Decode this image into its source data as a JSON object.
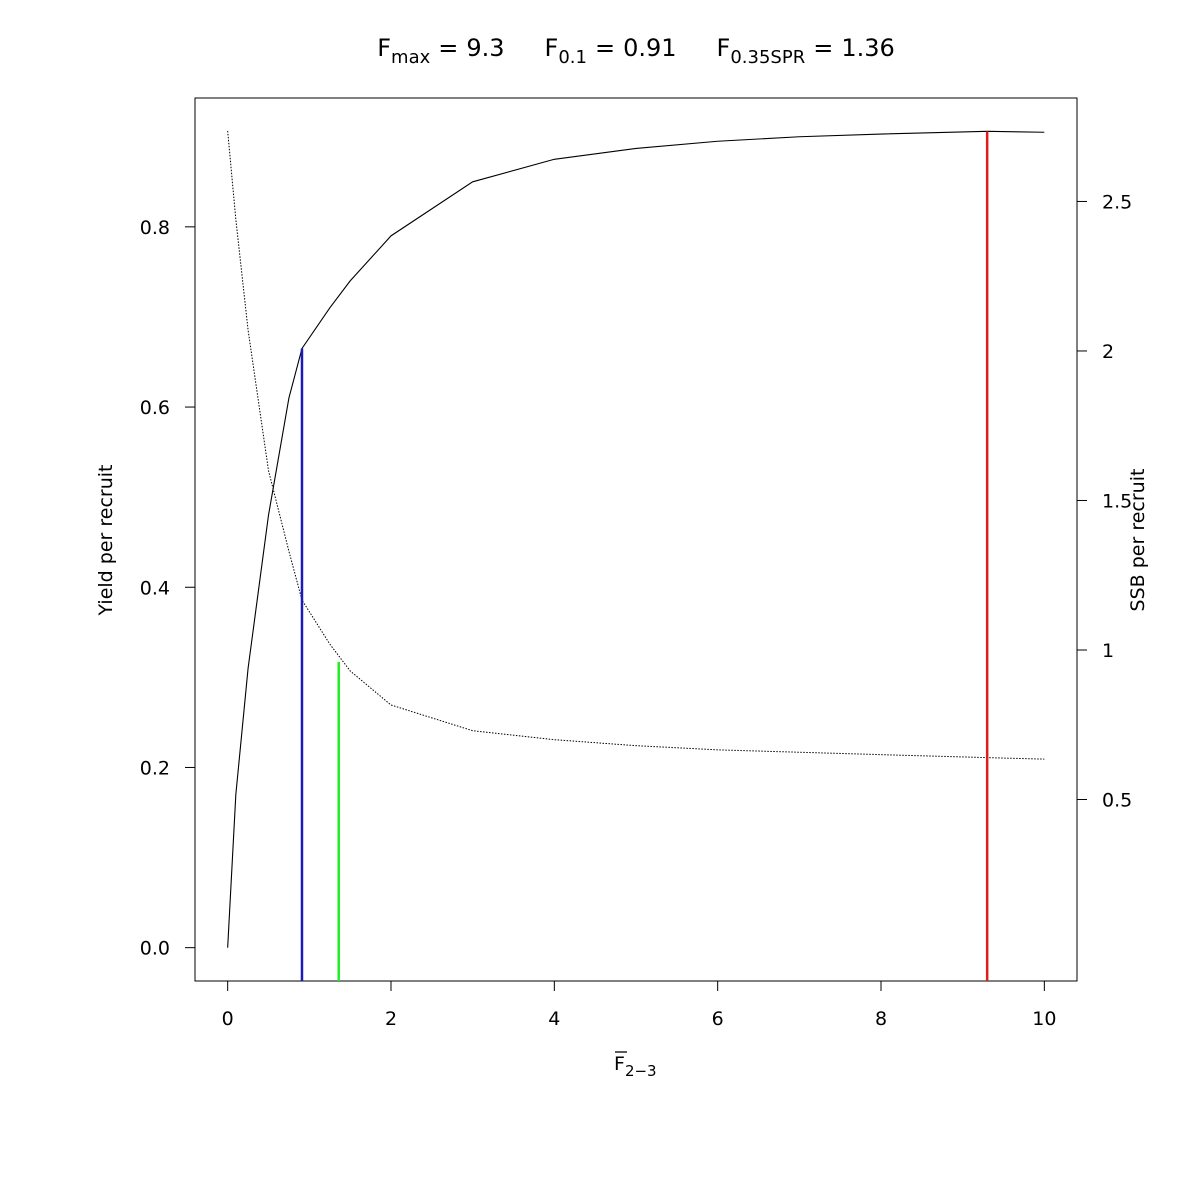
{
  "chart_data": {
    "type": "line",
    "title": [
      {
        "symbol": "F",
        "subscript": "max",
        "operator": "=",
        "value": "9.3"
      },
      {
        "symbol": "F",
        "subscript": "0.1",
        "operator": "=",
        "value": "0.91"
      },
      {
        "symbol": "F",
        "subscript": "0.35SPR",
        "operator": "=",
        "value": "1.36"
      }
    ],
    "x_label": {
      "symbol": "F",
      "subscript": "2−3"
    },
    "y_label": "Yield per recruit",
    "y2_label": "SSB per recruit",
    "x": [
      0,
      0.1,
      0.25,
      0.5,
      0.75,
      0.91,
      1.25,
      1.5,
      2,
      3,
      4,
      5,
      6,
      7,
      8,
      9.3,
      10
    ],
    "series": [
      {
        "color": "#000000",
        "line_style": "solid",
        "axis": "y",
        "values": [
          0,
          0.17,
          0.31,
          0.48,
          0.61,
          0.665,
          0.71,
          0.74,
          0.79,
          0.85,
          0.875,
          0.887,
          0.895,
          0.9,
          0.903,
          0.906,
          0.905
        ]
      },
      {
        "color": "#000000",
        "line_style": "dotted",
        "axis": "y2",
        "values": [
          2.736,
          2.44,
          2.07,
          1.6,
          1.33,
          1.167,
          1.02,
          0.93,
          0.816,
          0.73,
          0.7,
          0.68,
          0.666,
          0.658,
          0.65,
          0.64,
          0.635
        ]
      }
    ],
    "reference_lines": [
      {
        "x": 9.3,
        "top": 0.906,
        "axis": "y",
        "color": "#dd1c1c"
      },
      {
        "x": 0.91,
        "top": 0.665,
        "axis": "y",
        "color": "#1a1ab8"
      },
      {
        "x": 1.36,
        "top": 0.96,
        "axis": "y2",
        "color": "#22ee22"
      }
    ],
    "xlim": [
      -0.4,
      10.4
    ],
    "xticks": [
      0,
      2,
      4,
      6,
      8,
      10
    ],
    "ylim": [
      -0.037,
      0.943
    ],
    "yticks": [
      {
        "value": 0,
        "label": "0.0"
      },
      0.2,
      0.4,
      0.6,
      0.8
    ],
    "y2lim": [
      -0.107,
      2.846
    ],
    "y2ticks": [
      0.5,
      1,
      1.5,
      2,
      2.5
    ]
  }
}
